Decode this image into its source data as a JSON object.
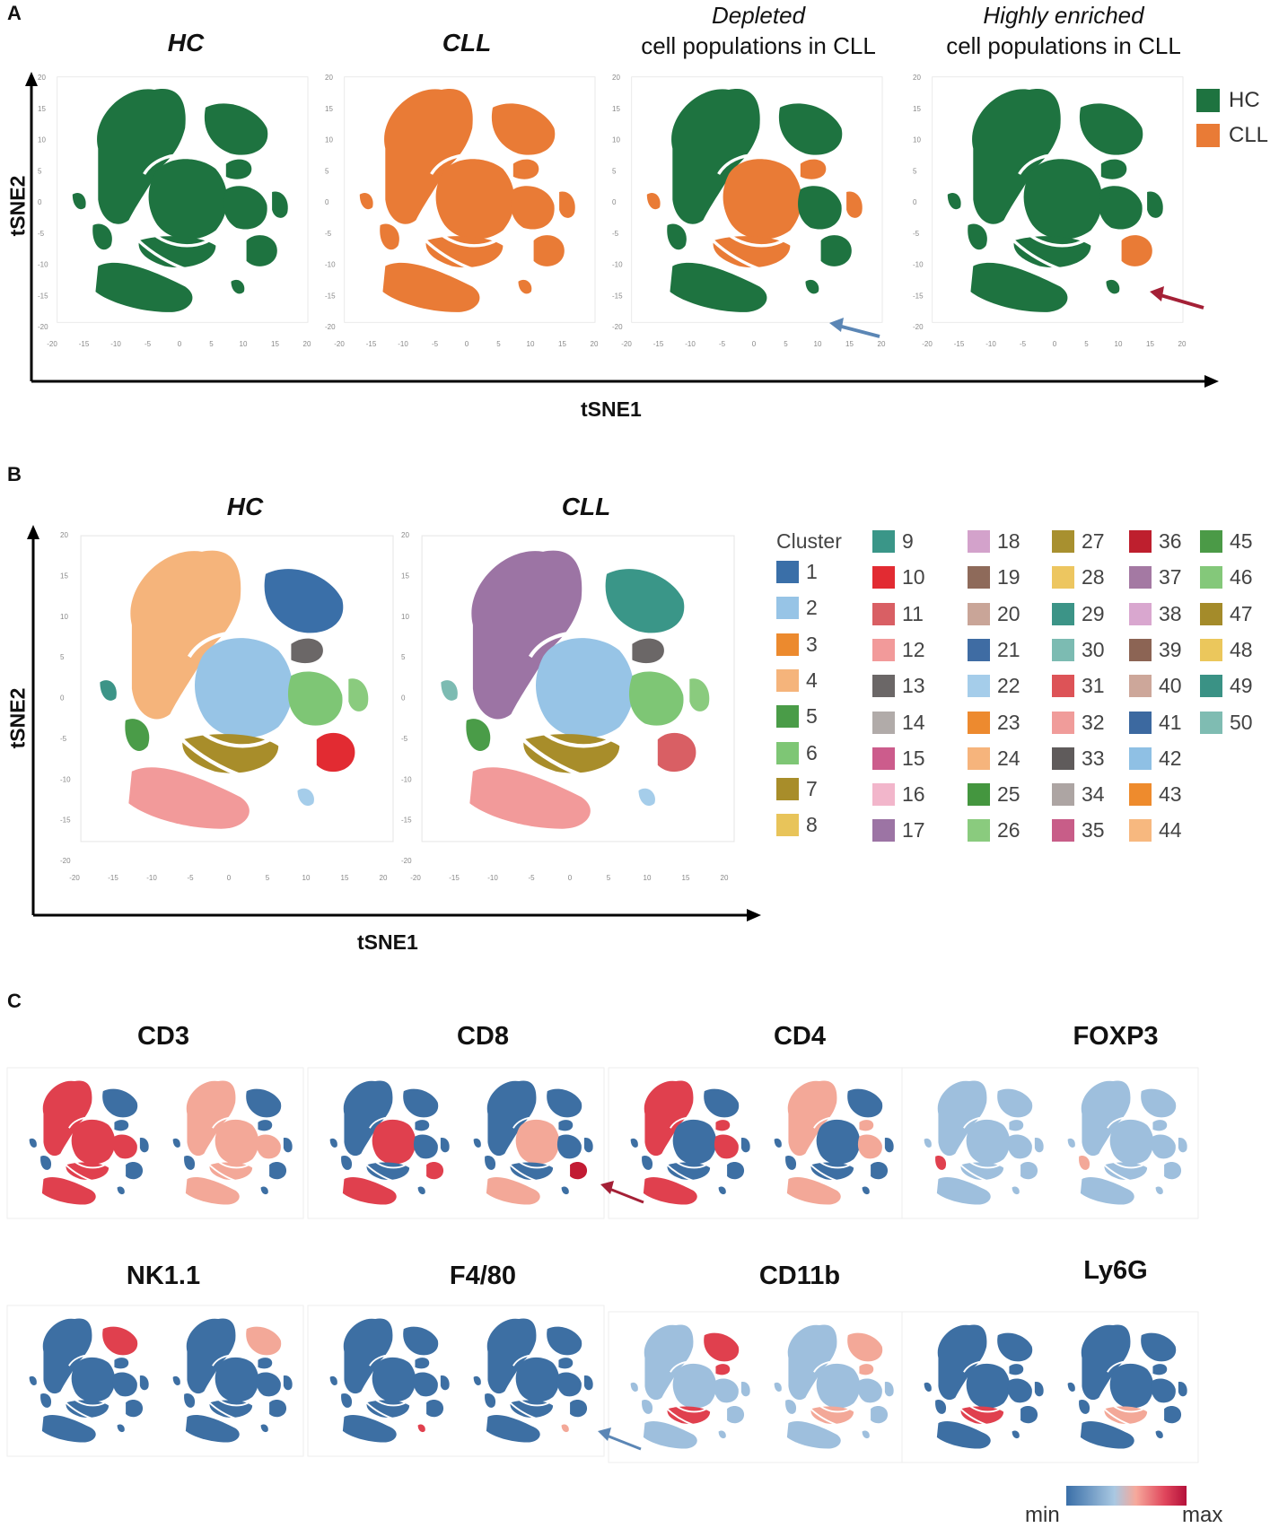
{
  "panel_a": {
    "letter": "A",
    "sample_titles": [
      "HC",
      "CLL"
    ],
    "depleted": {
      "line1": "Depleted",
      "line2": "cell populations in CLL"
    },
    "enriched": {
      "line1": "Highly enriched",
      "line2": "cell populations in CLL"
    },
    "x_axis": "tSNE1",
    "y_axis": "tSNE2",
    "legend": [
      {
        "label": "HC",
        "color": "#1e7340"
      },
      {
        "label": "CLL",
        "color": "#e97b36"
      }
    ],
    "ticks_x": [
      "-20",
      "-15",
      "-10",
      "-5",
      "0",
      "5",
      "10",
      "15",
      "20"
    ],
    "ticks_y": [
      "20",
      "15",
      "10",
      "5",
      "0",
      "-5",
      "-10",
      "-15",
      "-20"
    ]
  },
  "panel_b": {
    "letter": "B",
    "sample_titles": [
      "HC",
      "CLL"
    ],
    "x_axis": "tSNE1",
    "y_axis": "tSNE2",
    "ticks_x": [
      "-20",
      "-15",
      "-10",
      "-5",
      "0",
      "5",
      "10",
      "15",
      "20"
    ],
    "ticks_y": [
      "20",
      "15",
      "10",
      "5",
      "0",
      "-5",
      "-10",
      "-15",
      "-20"
    ],
    "cluster_title": "Cluster",
    "clusters": [
      {
        "label": "1",
        "color": "#3a6fa8"
      },
      {
        "label": "2",
        "color": "#97c4e6"
      },
      {
        "label": "3",
        "color": "#ec8a2e"
      },
      {
        "label": "4",
        "color": "#f5b47b"
      },
      {
        "label": "5",
        "color": "#4a9c48"
      },
      {
        "label": "6",
        "color": "#7ec675"
      },
      {
        "label": "7",
        "color": "#a88d2a"
      },
      {
        "label": "8",
        "color": "#e8c45a"
      },
      {
        "label": "9",
        "color": "#3a9688"
      },
      {
        "label": "10",
        "color": "#e22b32"
      },
      {
        "label": "11",
        "color": "#d95f64"
      },
      {
        "label": "12",
        "color": "#f29a9a"
      },
      {
        "label": "13",
        "color": "#6b6767"
      },
      {
        "label": "14",
        "color": "#b1aba9"
      },
      {
        "label": "15",
        "color": "#cc5c8c"
      },
      {
        "label": "16",
        "color": "#f2b6cb"
      },
      {
        "label": "17",
        "color": "#9c74a4"
      },
      {
        "label": "18",
        "color": "#d3a2cb"
      },
      {
        "label": "19",
        "color": "#8e6a5a"
      },
      {
        "label": "20",
        "color": "#c9a598"
      },
      {
        "label": "21",
        "color": "#3f6ca3"
      },
      {
        "label": "22",
        "color": "#a5cdea"
      },
      {
        "label": "23",
        "color": "#ed8a2f"
      },
      {
        "label": "24",
        "color": "#f6b47c"
      },
      {
        "label": "25",
        "color": "#44963f"
      },
      {
        "label": "26",
        "color": "#8acb7e"
      },
      {
        "label": "27",
        "color": "#a8902f"
      },
      {
        "label": "28",
        "color": "#edc660"
      },
      {
        "label": "29",
        "color": "#3c9487"
      },
      {
        "label": "30",
        "color": "#7cbbb2"
      },
      {
        "label": "31",
        "color": "#dd5357"
      },
      {
        "label": "32",
        "color": "#f09c9a"
      },
      {
        "label": "33",
        "color": "#5f5b5b"
      },
      {
        "label": "34",
        "color": "#ada5a3"
      },
      {
        "label": "35",
        "color": "#c85d88"
      },
      {
        "label": "36",
        "color": "#be1f2e"
      },
      {
        "label": "37",
        "color": "#a479a3"
      },
      {
        "label": "38",
        "color": "#d9a7cf"
      },
      {
        "label": "39",
        "color": "#8c6454"
      },
      {
        "label": "40",
        "color": "#cda79a"
      },
      {
        "label": "41",
        "color": "#3c69a0"
      },
      {
        "label": "42",
        "color": "#8fc0e4"
      },
      {
        "label": "43",
        "color": "#ee8b2d"
      },
      {
        "label": "44",
        "color": "#f7b87f"
      },
      {
        "label": "45",
        "color": "#4b9a47"
      },
      {
        "label": "46",
        "color": "#84c87a"
      },
      {
        "label": "47",
        "color": "#a48b2a"
      },
      {
        "label": "48",
        "color": "#ebc75c"
      },
      {
        "label": "49",
        "color": "#3a9285"
      },
      {
        "label": "50",
        "color": "#7fbcb2"
      }
    ]
  },
  "panel_c": {
    "letter": "C",
    "markers": [
      "CD3",
      "CD8",
      "CD4",
      "FOXP3",
      "NK1.1",
      "F4/80",
      "CD11b",
      "Ly6G"
    ],
    "colorbar": {
      "min_label": "min",
      "max_label": "max",
      "low": "#3a6fa8",
      "mid": "#f6a89b",
      "high": "#b4103a"
    }
  }
}
